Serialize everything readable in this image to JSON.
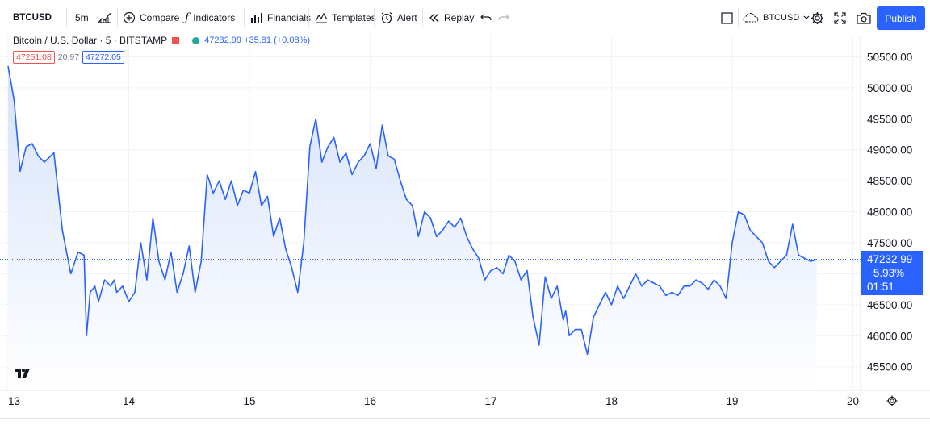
{
  "toolbar": {
    "symbol": "BTCUSD",
    "interval": "5m",
    "compare_label": "Compare",
    "indicators_label": "Indicators",
    "financials_label": "Financials",
    "templates_label": "Templates",
    "alert_label": "Alert",
    "replay_label": "Replay",
    "layout_symbol": "BTCUSD",
    "publish_label": "Publish"
  },
  "legend": {
    "title": "Bitcoin / U.S. Dollar · 5 · BITSTAMP",
    "price": "47232.99 +35.81 (+0.08%)",
    "bid": "47251.08",
    "spread": "20.97",
    "ask": "47272.05"
  },
  "price_label": {
    "price": "47232.99",
    "change": "−5.93%",
    "countdown": "01:51"
  },
  "colors": {
    "line": "#2962ff",
    "area_top": "#dce6fc",
    "area_bottom": "#ffffff",
    "accent": "#2962ff",
    "down": "#ef5350"
  },
  "chart_data": {
    "type": "area",
    "title": "Bitcoin / U.S. Dollar · 5 · BITSTAMP",
    "y_ticks": [
      "50500.00",
      "50000.00",
      "49500.00",
      "49000.00",
      "48500.00",
      "48000.00",
      "47500.00",
      "47000.00",
      "46500.00",
      "46000.00",
      "45500.00"
    ],
    "x_ticks": [
      "13",
      "14",
      "15",
      "16",
      "17",
      "18",
      "19",
      "20"
    ],
    "ylim": [
      45250,
      50750
    ],
    "xlim": [
      13,
      20
    ],
    "last_price": 47232.99,
    "series": [
      {
        "x": [
          13.0,
          13.05,
          13.1,
          13.15,
          13.2,
          13.25,
          13.3,
          13.38,
          13.45,
          13.52,
          13.58,
          13.63,
          13.65,
          13.68,
          13.72,
          13.75,
          13.8,
          13.85,
          13.88,
          13.9,
          13.95,
          14.0,
          14.05,
          14.1,
          14.15,
          14.2,
          14.25,
          14.3,
          14.35,
          14.4,
          14.45,
          14.5,
          14.55,
          14.6,
          14.65,
          14.7,
          14.75,
          14.8,
          14.85,
          14.9,
          14.95,
          15.0,
          15.05,
          15.1,
          15.15,
          15.2,
          15.25,
          15.3,
          15.35,
          15.4,
          15.45,
          15.5,
          15.55,
          15.6,
          15.65,
          15.7,
          15.75,
          15.8,
          15.85,
          15.9,
          15.95,
          16.0,
          16.05,
          16.1,
          16.15,
          16.2,
          16.25,
          16.3,
          16.35,
          16.4,
          16.45,
          16.5,
          16.55,
          16.6,
          16.65,
          16.7,
          16.75,
          16.8,
          16.85,
          16.9,
          16.95,
          17.0,
          17.05,
          17.1,
          17.15,
          17.2,
          17.25,
          17.3,
          17.35,
          17.4,
          17.45,
          17.5,
          17.55,
          17.6,
          17.62,
          17.65,
          17.7,
          17.75,
          17.8,
          17.85,
          17.9,
          17.95,
          18.0,
          18.05,
          18.1,
          18.15,
          18.2,
          18.25,
          18.3,
          18.35,
          18.4,
          18.45,
          18.5,
          18.55,
          18.6,
          18.65,
          18.7,
          18.75,
          18.8,
          18.85,
          18.9,
          18.95,
          19.0,
          19.05,
          19.1,
          19.15,
          19.2,
          19.25,
          19.3,
          19.35,
          19.4,
          19.45,
          19.5,
          19.55,
          19.6,
          19.65,
          19.7
        ],
        "y": [
          50350,
          49800,
          48650,
          49050,
          49100,
          48900,
          48800,
          48950,
          47700,
          47000,
          47350,
          47300,
          46000,
          46700,
          46800,
          46550,
          46900,
          46800,
          46900,
          46700,
          46800,
          46550,
          46700,
          47500,
          46900,
          47900,
          47200,
          46900,
          47350,
          46700,
          47000,
          47450,
          46700,
          47200,
          48600,
          48300,
          48500,
          48200,
          48500,
          48100,
          48350,
          48300,
          48650,
          48100,
          48250,
          47600,
          47900,
          47400,
          47100,
          46700,
          47500,
          49050,
          49500,
          48800,
          49050,
          49200,
          48800,
          48950,
          48600,
          48800,
          48900,
          49100,
          48700,
          49400,
          48900,
          48850,
          48500,
          48200,
          48100,
          47600,
          48000,
          47900,
          47600,
          47700,
          47850,
          47750,
          47900,
          47600,
          47400,
          47250,
          46900,
          47050,
          47100,
          47000,
          47300,
          47200,
          46900,
          47050,
          46300,
          45850,
          46950,
          46600,
          46800,
          46250,
          46400,
          46000,
          46100,
          46100,
          45700,
          46300,
          46500,
          46700,
          46500,
          46800,
          46600,
          46800,
          47000,
          46800,
          46900,
          46850,
          46800,
          46650,
          46700,
          46650,
          46800,
          46800,
          46900,
          46850,
          46750,
          46900,
          46800,
          46600,
          47500,
          48000,
          47950,
          47700,
          47600,
          47500,
          47200,
          47100,
          47200,
          47300,
          47800,
          47300,
          47250,
          47200,
          47230
        ],
        "name": ""
      }
    ]
  }
}
